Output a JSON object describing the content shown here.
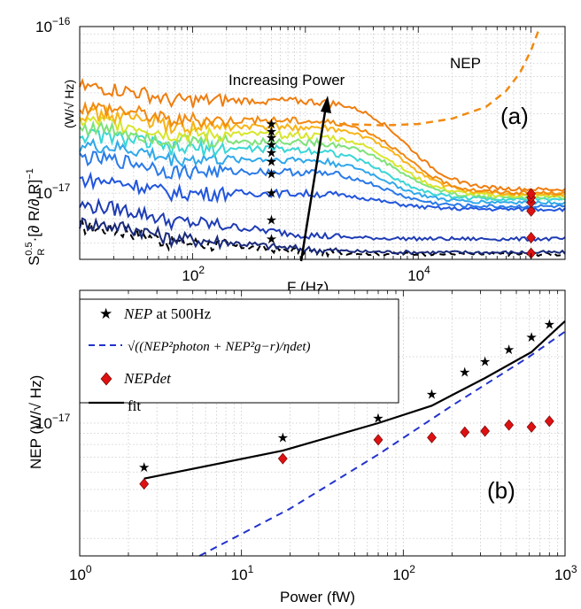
{
  "chart_data": [
    {
      "id": "a",
      "type": "line",
      "panel_label": "(a)",
      "xlabel": "F (Hz)",
      "ylabel_main": "S",
      "ylabel_sub": "R",
      "ylabel_sup": "0.5",
      "ylabel_rest": "·[∂ R/∂ R]",
      "ylabel_exp": "−1",
      "ylabel_units": "(W/√ Hz)",
      "xscale": "log",
      "yscale": "log",
      "xlim": [
        10,
        200000
      ],
      "ylim": [
        4e-18,
        1e-16
      ],
      "xticks": [
        {
          "v": 100,
          "base": "10",
          "exp": "2"
        },
        {
          "v": 10000,
          "base": "10",
          "exp": "4"
        }
      ],
      "yticks": [
        {
          "v": 1e-17,
          "base": "10",
          "exp": "−17"
        },
        {
          "v": 1e-16,
          "base": "10",
          "exp": "−16"
        }
      ],
      "grid": true,
      "annotations": {
        "increasing_power": "Increasing Power",
        "nep": "NEP"
      },
      "marker_freq": 500,
      "marker_high_freq": 100000,
      "series": [
        {
          "color": "#000000",
          "dashed": true,
          "base": 5.2e-18,
          "knee": 0,
          "end": 4.3e-18
        },
        {
          "color": "#1a2a7a",
          "base": 5.5e-18,
          "knee": 0,
          "end": 4.4e-18
        },
        {
          "color": "#1e3cb4",
          "base": 7e-18,
          "knee": 0,
          "end": 5.3e-18
        },
        {
          "color": "#2255dd",
          "base": 1e-17,
          "knee": 1500,
          "end": 8e-18
        },
        {
          "color": "#2a7ae8",
          "base": 1.35e-17,
          "knee": 1500,
          "end": 8.3e-18
        },
        {
          "color": "#30a8ea",
          "base": 1.6e-17,
          "knee": 1500,
          "end": 8.8e-18
        },
        {
          "color": "#3ad6d6",
          "base": 1.85e-17,
          "knee": 1500,
          "end": 9.2e-18
        },
        {
          "color": "#7ee27a",
          "base": 2.05e-17,
          "knee": 1800,
          "end": 9.4e-18
        },
        {
          "color": "#d8e62c",
          "base": 2.25e-17,
          "knee": 1800,
          "end": 9.6e-18
        },
        {
          "color": "#f8b418",
          "base": 2.5e-17,
          "knee": 2000,
          "end": 9.8e-18
        },
        {
          "color": "#f28a10",
          "base": 2.75e-17,
          "knee": 2000,
          "end": 1e-17
        },
        {
          "color": "#ef7d10",
          "base": 3.6e-17,
          "knee": 2000,
          "end": 1.05e-17
        }
      ],
      "star_values": [
        5.3e-18,
        6.9e-18,
        1e-17,
        1.3e-17,
        1.55e-17,
        1.75e-17,
        1.95e-17,
        2.15e-17,
        2.35e-17,
        2.6e-17
      ],
      "diamond_values": [
        4.35e-18,
        5.4e-18,
        7.8e-18,
        8.8e-18,
        9.4e-18,
        9.9e-18
      ],
      "nep_curve": [
        [
          2000,
          2.6e-17
        ],
        [
          5000,
          2.55e-17
        ],
        [
          10000,
          2.6e-17
        ],
        [
          20000,
          2.8e-17
        ],
        [
          40000,
          3.3e-17
        ],
        [
          60000,
          4.1e-17
        ],
        [
          80000,
          5.3e-17
        ],
        [
          100000,
          7.2e-17
        ],
        [
          120000,
          1e-16
        ]
      ]
    },
    {
      "id": "b",
      "type": "line",
      "panel_label": "(b)",
      "xlabel": "Power (fW)",
      "ylabel": "NEP (W/√ Hz)",
      "xscale": "log",
      "yscale": "log",
      "xlim": [
        1,
        1000
      ],
      "ylim": [
        2.5e-18,
        4e-17
      ],
      "xticks": [
        {
          "v": 1,
          "base": "10",
          "exp": "0"
        },
        {
          "v": 10,
          "base": "10",
          "exp": "1"
        },
        {
          "v": 100,
          "base": "10",
          "exp": "2"
        },
        {
          "v": 1000,
          "base": "10",
          "exp": "3"
        }
      ],
      "yticks": [
        {
          "v": 1e-17,
          "base": "10",
          "exp": "−17"
        }
      ],
      "grid": true,
      "legend": {
        "items": [
          {
            "symbol": "star",
            "label_main": "NEP",
            "label_rest": " at 500Hz"
          },
          {
            "symbol": "dash",
            "label_main": "√((NEP²photon + NEP²g−r)/ηdet)"
          },
          {
            "symbol": "diamond",
            "label_main": "NEPdet"
          },
          {
            "symbol": "line",
            "label_main": "fit"
          }
        ]
      },
      "star_points": [
        [
          2.5,
          6.3e-18
        ],
        [
          18,
          8.6e-18
        ],
        [
          70,
          1.05e-17
        ],
        [
          150,
          1.35e-17
        ],
        [
          240,
          1.7e-17
        ],
        [
          320,
          1.9e-17
        ],
        [
          450,
          2.15e-17
        ],
        [
          620,
          2.45e-17
        ],
        [
          800,
          2.8e-17
        ]
      ],
      "diamond_points": [
        [
          2.5,
          5.3e-18
        ],
        [
          18,
          6.9e-18
        ],
        [
          70,
          8.4e-18
        ],
        [
          150,
          8.6e-18
        ],
        [
          240,
          9.1e-18
        ],
        [
          320,
          9.2e-18
        ],
        [
          450,
          9.8e-18
        ],
        [
          620,
          9.6e-18
        ],
        [
          800,
          1.02e-17
        ]
      ],
      "fit_curve": [
        [
          2.5,
          5.6e-18
        ],
        [
          18,
          7.5e-18
        ],
        [
          70,
          1e-17
        ],
        [
          150,
          1.2e-17
        ],
        [
          320,
          1.6e-17
        ],
        [
          620,
          2.1e-17
        ],
        [
          1000,
          2.9e-17
        ]
      ],
      "dashed_curve": [
        [
          5.5,
          2.5e-18
        ],
        [
          20,
          4.1e-18
        ],
        [
          70,
          7.2e-18
        ],
        [
          200,
          1.2e-17
        ],
        [
          600,
          2e-17
        ],
        [
          1000,
          2.6e-17
        ]
      ]
    }
  ]
}
